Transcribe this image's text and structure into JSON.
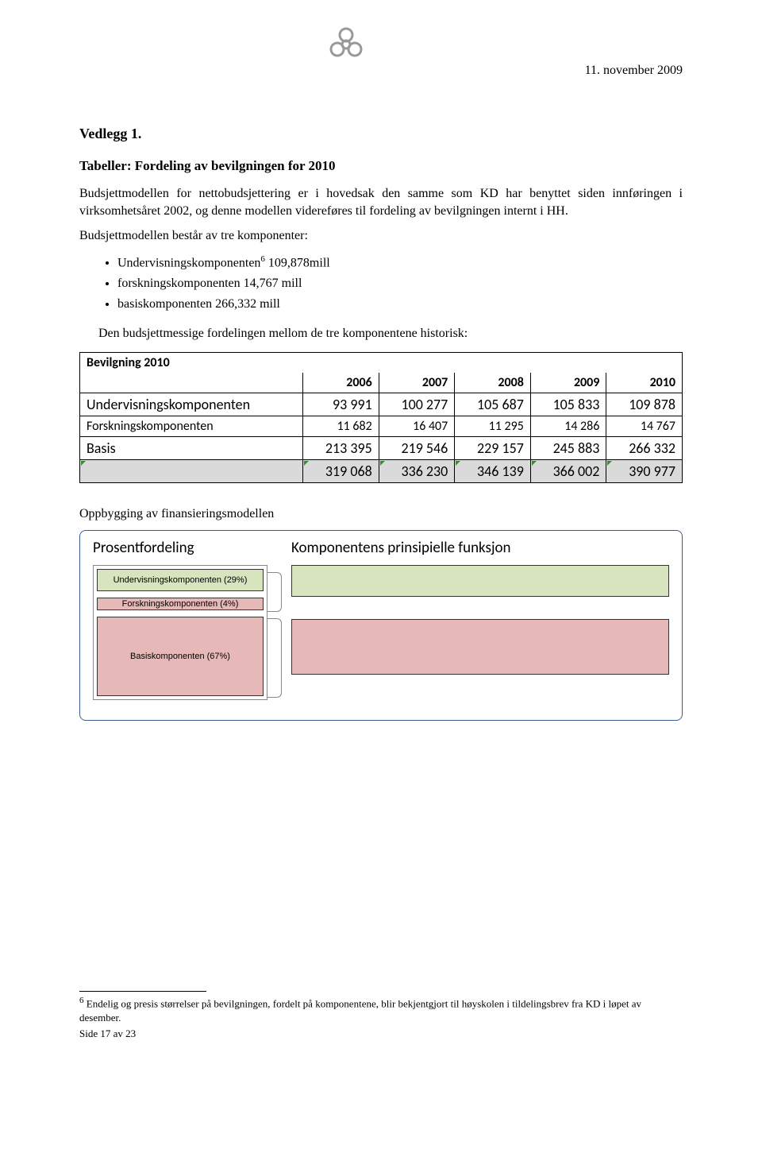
{
  "header": {
    "date": "11. november 2009"
  },
  "titles": {
    "vedlegg": "Vedlegg 1.",
    "tabeller": "Tabeller: Fordeling av bevilgningen for 2010"
  },
  "paragraphs": {
    "p1": "Budsjettmodellen for nettobudsjettering er i hovedsak den samme som KD har benyttet siden innføringen i virksomhetsåret 2002, og denne modellen videreføres til fordeling av bevilgningen internt i HH.",
    "p2": "Budsjettmodellen består av tre komponenter:",
    "mellom": "Den budsjettmessige fordelingen mellom de tre komponentene historisk:"
  },
  "bullets": {
    "b1a": "Undervisningskomponenten",
    "b1sup": "6",
    "b1b": " 109,878mill",
    "b2": "forskningskomponenten 14,767 mill",
    "b3": "basiskomponenten 266,332 mill"
  },
  "table": {
    "title": "Bevilgning 2010",
    "columns": [
      "2006",
      "2007",
      "2008",
      "2009",
      "2010"
    ],
    "rows": [
      {
        "label": "Undervisningskomponenten",
        "cells": [
          "93 991",
          "100 277",
          "105 687",
          "105 833",
          "109 878"
        ],
        "big": true
      },
      {
        "label": "Forskningskomponenten",
        "cells": [
          "11 682",
          "16 407",
          "11 295",
          "14 286",
          "14 767"
        ],
        "big": false
      },
      {
        "label": "Basis",
        "cells": [
          "213 395",
          "219 546",
          "229 157",
          "245 883",
          "266 332"
        ],
        "big": true
      }
    ],
    "total": [
      "319 068",
      "336 230",
      "346 139",
      "366 002",
      "390 977"
    ]
  },
  "oppbygging": "Oppbygging av finansieringsmodellen",
  "diagram": {
    "left_heading": "Prosentfordeling",
    "right_heading": "Komponentens prinsipielle funksjon",
    "blocks": [
      {
        "label": "Undervisningskomponenten (29%)",
        "height": 28,
        "color": "#d7e4bd"
      },
      {
        "label": "Forskningskomponenten (4%)",
        "height": 16,
        "color": "#e6b9b8"
      },
      {
        "label": "Basiskomponenten (67%)",
        "height": 100,
        "color": "#e6b9b8"
      }
    ],
    "func_colors": [
      "#d7e4bd",
      "#e6b9b8"
    ],
    "border_color": "#3b5f8f"
  },
  "footnote": {
    "sup": "6",
    "text": " Endelig og presis størrelser på bevilgningen, fordelt på komponentene, blir bekjentgjort til høyskolen i tildelingsbrev fra KD i løpet av desember."
  },
  "page": "Side 17 av 23"
}
